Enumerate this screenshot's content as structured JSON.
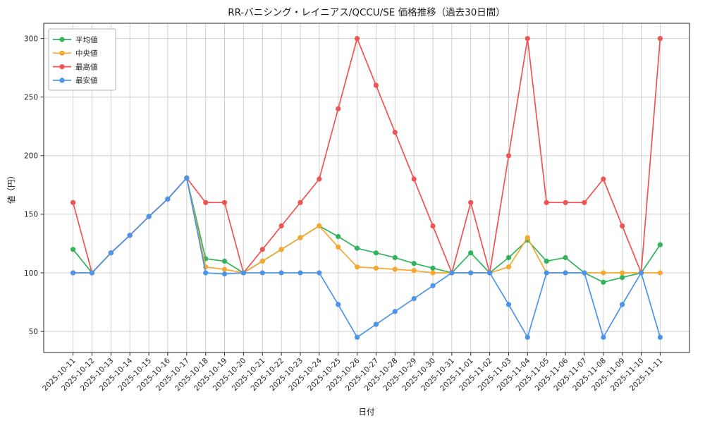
{
  "chart_data": {
    "type": "line",
    "title": "RR-バニシング・レイニアス/QCCU/SE 価格推移（過去30日間）",
    "xlabel": "日付",
    "ylabel": "値（円）",
    "grid": true,
    "legend_position": "upper-left",
    "ylim": [
      32,
      313
    ],
    "yticks": [
      50,
      100,
      150,
      200,
      250,
      300
    ],
    "x": [
      "2025-10-11",
      "2025-10-12",
      "2025-10-13",
      "2025-10-14",
      "2025-10-15",
      "2025-10-16",
      "2025-10-17",
      "2025-10-18",
      "2025-10-19",
      "2025-10-20",
      "2025-10-21",
      "2025-10-22",
      "2025-10-23",
      "2025-10-24",
      "2025-10-25",
      "2025-10-26",
      "2025-10-27",
      "2025-10-28",
      "2025-10-29",
      "2025-10-30",
      "2025-10-31",
      "2025-11-01",
      "2025-11-02",
      "2025-11-03",
      "2025-11-04",
      "2025-11-05",
      "2025-11-06",
      "2025-11-07",
      "2025-11-08",
      "2025-11-09",
      "2025-11-10",
      "2025-11-11"
    ],
    "series": [
      {
        "name": "平均値",
        "key": "average",
        "color": "#30b35a",
        "values": [
          120,
          100,
          117,
          132,
          148,
          163,
          181,
          112,
          110,
          100,
          110,
          120,
          130,
          140,
          131,
          121,
          117,
          113,
          108,
          104,
          100,
          117,
          100,
          113,
          128,
          110,
          113,
          100,
          92,
          96,
          100,
          124
        ]
      },
      {
        "name": "中央値",
        "key": "median",
        "color": "#f5a72e",
        "values": [
          100,
          100,
          117,
          132,
          148,
          163,
          181,
          105,
          103,
          100,
          110,
          120,
          130,
          140,
          122,
          105,
          104,
          103,
          102,
          100,
          100,
          100,
          100,
          105,
          130,
          100,
          100,
          100,
          100,
          100,
          100,
          100
        ]
      },
      {
        "name": "最高値",
        "key": "max",
        "color": "#f15353",
        "values": [
          160,
          100,
          117,
          132,
          148,
          163,
          181,
          160,
          160,
          100,
          120,
          140,
          160,
          180,
          240,
          300,
          260,
          220,
          180,
          140,
          100,
          160,
          100,
          200,
          300,
          160,
          160,
          160,
          180,
          140,
          100,
          300
        ]
      },
      {
        "name": "最安値",
        "key": "min",
        "color": "#4b94ed",
        "values": [
          100,
          100,
          117,
          132,
          148,
          163,
          181,
          100,
          99,
          100,
          100,
          100,
          100,
          100,
          73,
          45,
          56,
          67,
          78,
          89,
          100,
          100,
          100,
          73,
          45,
          100,
          100,
          100,
          45,
          73,
          100,
          45
        ]
      }
    ]
  }
}
